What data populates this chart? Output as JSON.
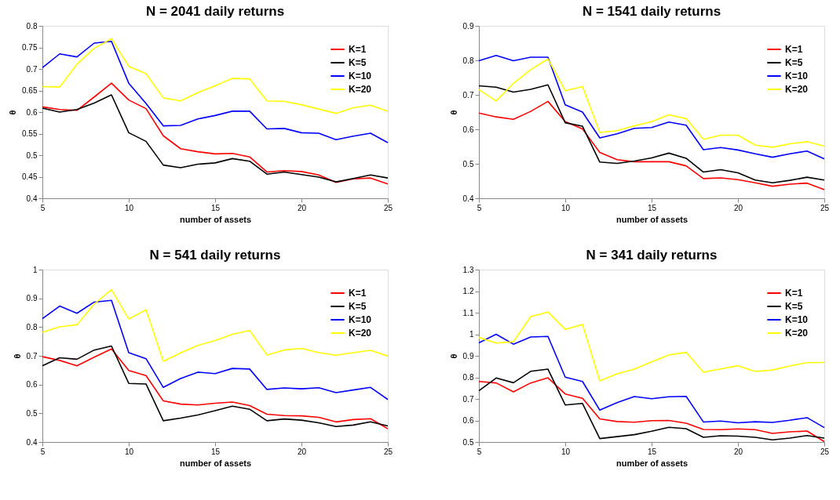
{
  "chart_data": [
    {
      "type": "line",
      "title": "N = 2041 daily returns",
      "xlabel": "number of assets",
      "ylabel": "θ",
      "x": [
        5,
        6,
        7,
        8,
        9,
        10,
        11,
        12,
        13,
        14,
        15,
        16,
        17,
        18,
        19,
        20,
        21,
        22,
        23,
        24,
        25
      ],
      "xlim": [
        5,
        25
      ],
      "xticks": [
        5,
        10,
        15,
        20,
        25
      ],
      "ylim": [
        0.4,
        0.8
      ],
      "yticks": [
        0.4,
        0.45,
        0.5,
        0.55,
        0.6,
        0.65,
        0.7,
        0.75,
        0.8
      ],
      "grid": false,
      "legend": "top right",
      "series": [
        {
          "name": "K=1",
          "color": "#ff0000",
          "values": [
            0.612,
            0.606,
            0.604,
            0.635,
            0.667,
            0.628,
            0.608,
            0.545,
            0.515,
            0.508,
            0.503,
            0.504,
            0.496,
            0.461,
            0.464,
            0.462,
            0.454,
            0.437,
            0.445,
            0.447,
            0.433
          ]
        },
        {
          "name": "K=5",
          "color": "#000000",
          "values": [
            0.609,
            0.6,
            0.606,
            0.621,
            0.64,
            0.552,
            0.532,
            0.477,
            0.471,
            0.479,
            0.482,
            0.492,
            0.486,
            0.456,
            0.461,
            0.455,
            0.449,
            0.438,
            0.446,
            0.454,
            0.447
          ]
        },
        {
          "name": "K=10",
          "color": "#0000ff",
          "values": [
            0.703,
            0.735,
            0.728,
            0.76,
            0.764,
            0.667,
            0.62,
            0.568,
            0.569,
            0.584,
            0.592,
            0.602,
            0.602,
            0.561,
            0.562,
            0.552,
            0.551,
            0.536,
            0.544,
            0.551,
            0.529
          ]
        },
        {
          "name": "K=20",
          "color": "#ffff00",
          "values": [
            0.659,
            0.658,
            0.711,
            0.748,
            0.77,
            0.706,
            0.689,
            0.633,
            0.626,
            0.645,
            0.661,
            0.678,
            0.677,
            0.626,
            0.625,
            0.617,
            0.607,
            0.597,
            0.61,
            0.616,
            0.602
          ]
        }
      ]
    },
    {
      "type": "line",
      "title": "N = 1541 daily returns",
      "xlabel": "number of assets",
      "ylabel": "θ",
      "x": [
        5,
        6,
        7,
        8,
        9,
        10,
        11,
        12,
        13,
        14,
        15,
        16,
        17,
        18,
        19,
        20,
        21,
        22,
        23,
        24,
        25
      ],
      "xlim": [
        5,
        25
      ],
      "xticks": [
        5,
        10,
        15,
        20,
        25
      ],
      "ylim": [
        0.4,
        0.9
      ],
      "yticks": [
        0.4,
        0.5,
        0.6,
        0.7,
        0.8,
        0.9
      ],
      "grid": false,
      "legend": "top right",
      "series": [
        {
          "name": "K=1",
          "color": "#ff0000",
          "values": [
            0.647,
            0.636,
            0.629,
            0.652,
            0.681,
            0.622,
            0.601,
            0.533,
            0.512,
            0.506,
            0.506,
            0.506,
            0.494,
            0.457,
            0.459,
            0.454,
            0.445,
            0.435,
            0.441,
            0.444,
            0.425
          ]
        },
        {
          "name": "K=5",
          "color": "#000000",
          "values": [
            0.726,
            0.722,
            0.708,
            0.716,
            0.729,
            0.619,
            0.609,
            0.505,
            0.501,
            0.508,
            0.517,
            0.531,
            0.516,
            0.476,
            0.483,
            0.474,
            0.453,
            0.445,
            0.452,
            0.461,
            0.453
          ]
        },
        {
          "name": "K=10",
          "color": "#0000ff",
          "values": [
            0.799,
            0.814,
            0.799,
            0.809,
            0.809,
            0.671,
            0.65,
            0.575,
            0.587,
            0.603,
            0.605,
            0.621,
            0.612,
            0.541,
            0.547,
            0.54,
            0.529,
            0.519,
            0.529,
            0.537,
            0.514
          ]
        },
        {
          "name": "K=20",
          "color": "#ffff00",
          "values": [
            0.715,
            0.682,
            0.733,
            0.773,
            0.804,
            0.712,
            0.724,
            0.591,
            0.596,
            0.61,
            0.622,
            0.642,
            0.631,
            0.571,
            0.583,
            0.583,
            0.554,
            0.548,
            0.558,
            0.564,
            0.551
          ]
        }
      ]
    },
    {
      "type": "line",
      "title": "N = 541 daily returns",
      "xlabel": "number of assets",
      "ylabel": "θ",
      "x": [
        5,
        6,
        7,
        8,
        9,
        10,
        11,
        12,
        13,
        14,
        15,
        16,
        17,
        18,
        19,
        20,
        21,
        22,
        23,
        24,
        25
      ],
      "xlim": [
        5,
        25
      ],
      "xticks": [
        5,
        10,
        15,
        20,
        25
      ],
      "ylim": [
        0.4,
        1
      ],
      "yticks": [
        0.4,
        0.5,
        0.6,
        0.7,
        0.8,
        0.9,
        1
      ],
      "grid": false,
      "legend": "top right",
      "series": [
        {
          "name": "K=1",
          "color": "#ff0000",
          "values": [
            0.697,
            0.684,
            0.665,
            0.695,
            0.724,
            0.649,
            0.631,
            0.543,
            0.532,
            0.529,
            0.535,
            0.539,
            0.527,
            0.497,
            0.492,
            0.491,
            0.486,
            0.47,
            0.478,
            0.481,
            0.446
          ]
        },
        {
          "name": "K=5",
          "color": "#000000",
          "values": [
            0.665,
            0.693,
            0.688,
            0.72,
            0.734,
            0.604,
            0.602,
            0.474,
            0.483,
            0.494,
            0.509,
            0.525,
            0.514,
            0.474,
            0.48,
            0.476,
            0.467,
            0.454,
            0.459,
            0.47,
            0.456
          ]
        },
        {
          "name": "K=10",
          "color": "#0000ff",
          "values": [
            0.829,
            0.873,
            0.848,
            0.887,
            0.893,
            0.711,
            0.69,
            0.59,
            0.621,
            0.643,
            0.638,
            0.656,
            0.654,
            0.583,
            0.588,
            0.585,
            0.589,
            0.572,
            0.581,
            0.59,
            0.548
          ]
        },
        {
          "name": "K=20",
          "color": "#ffff00",
          "values": [
            0.782,
            0.801,
            0.808,
            0.88,
            0.93,
            0.828,
            0.86,
            0.681,
            0.71,
            0.736,
            0.753,
            0.775,
            0.788,
            0.703,
            0.72,
            0.726,
            0.711,
            0.702,
            0.711,
            0.719,
            0.699
          ]
        }
      ]
    },
    {
      "type": "line",
      "title": "N = 341 daily returns",
      "xlabel": "number of assets",
      "ylabel": "θ",
      "x": [
        5,
        6,
        7,
        8,
        9,
        10,
        11,
        12,
        13,
        14,
        15,
        16,
        17,
        18,
        19,
        20,
        21,
        22,
        23,
        24,
        25
      ],
      "xlim": [
        5,
        25
      ],
      "xticks": [
        5,
        10,
        15,
        20,
        25
      ],
      "ylim": [
        0.5,
        1.3
      ],
      "yticks": [
        0.5,
        0.6,
        0.7,
        0.8,
        0.9,
        1,
        1.1,
        1.2,
        1.3
      ],
      "grid": false,
      "legend": "top right",
      "series": [
        {
          "name": "K=1",
          "color": "#ff0000",
          "values": [
            0.781,
            0.774,
            0.733,
            0.774,
            0.798,
            0.723,
            0.703,
            0.607,
            0.595,
            0.592,
            0.599,
            0.6,
            0.587,
            0.558,
            0.557,
            0.561,
            0.557,
            0.54,
            0.547,
            0.551,
            0.502
          ]
        },
        {
          "name": "K=5",
          "color": "#000000",
          "values": [
            0.738,
            0.797,
            0.775,
            0.828,
            0.838,
            0.672,
            0.679,
            0.516,
            0.525,
            0.534,
            0.55,
            0.568,
            0.562,
            0.522,
            0.529,
            0.527,
            0.522,
            0.51,
            0.518,
            0.53,
            0.518
          ]
        },
        {
          "name": "K=10",
          "color": "#0000ff",
          "values": [
            0.96,
            1.0,
            0.954,
            0.987,
            0.99,
            0.801,
            0.781,
            0.648,
            0.683,
            0.711,
            0.701,
            0.71,
            0.712,
            0.593,
            0.597,
            0.589,
            0.594,
            0.591,
            0.601,
            0.613,
            0.567
          ]
        },
        {
          "name": "K=20",
          "color": "#ffff00",
          "values": [
            0.985,
            0.959,
            0.965,
            1.082,
            1.103,
            1.023,
            1.045,
            0.784,
            0.816,
            0.838,
            0.872,
            0.904,
            0.916,
            0.824,
            0.839,
            0.854,
            0.827,
            0.834,
            0.853,
            0.868,
            0.869
          ]
        }
      ]
    }
  ]
}
